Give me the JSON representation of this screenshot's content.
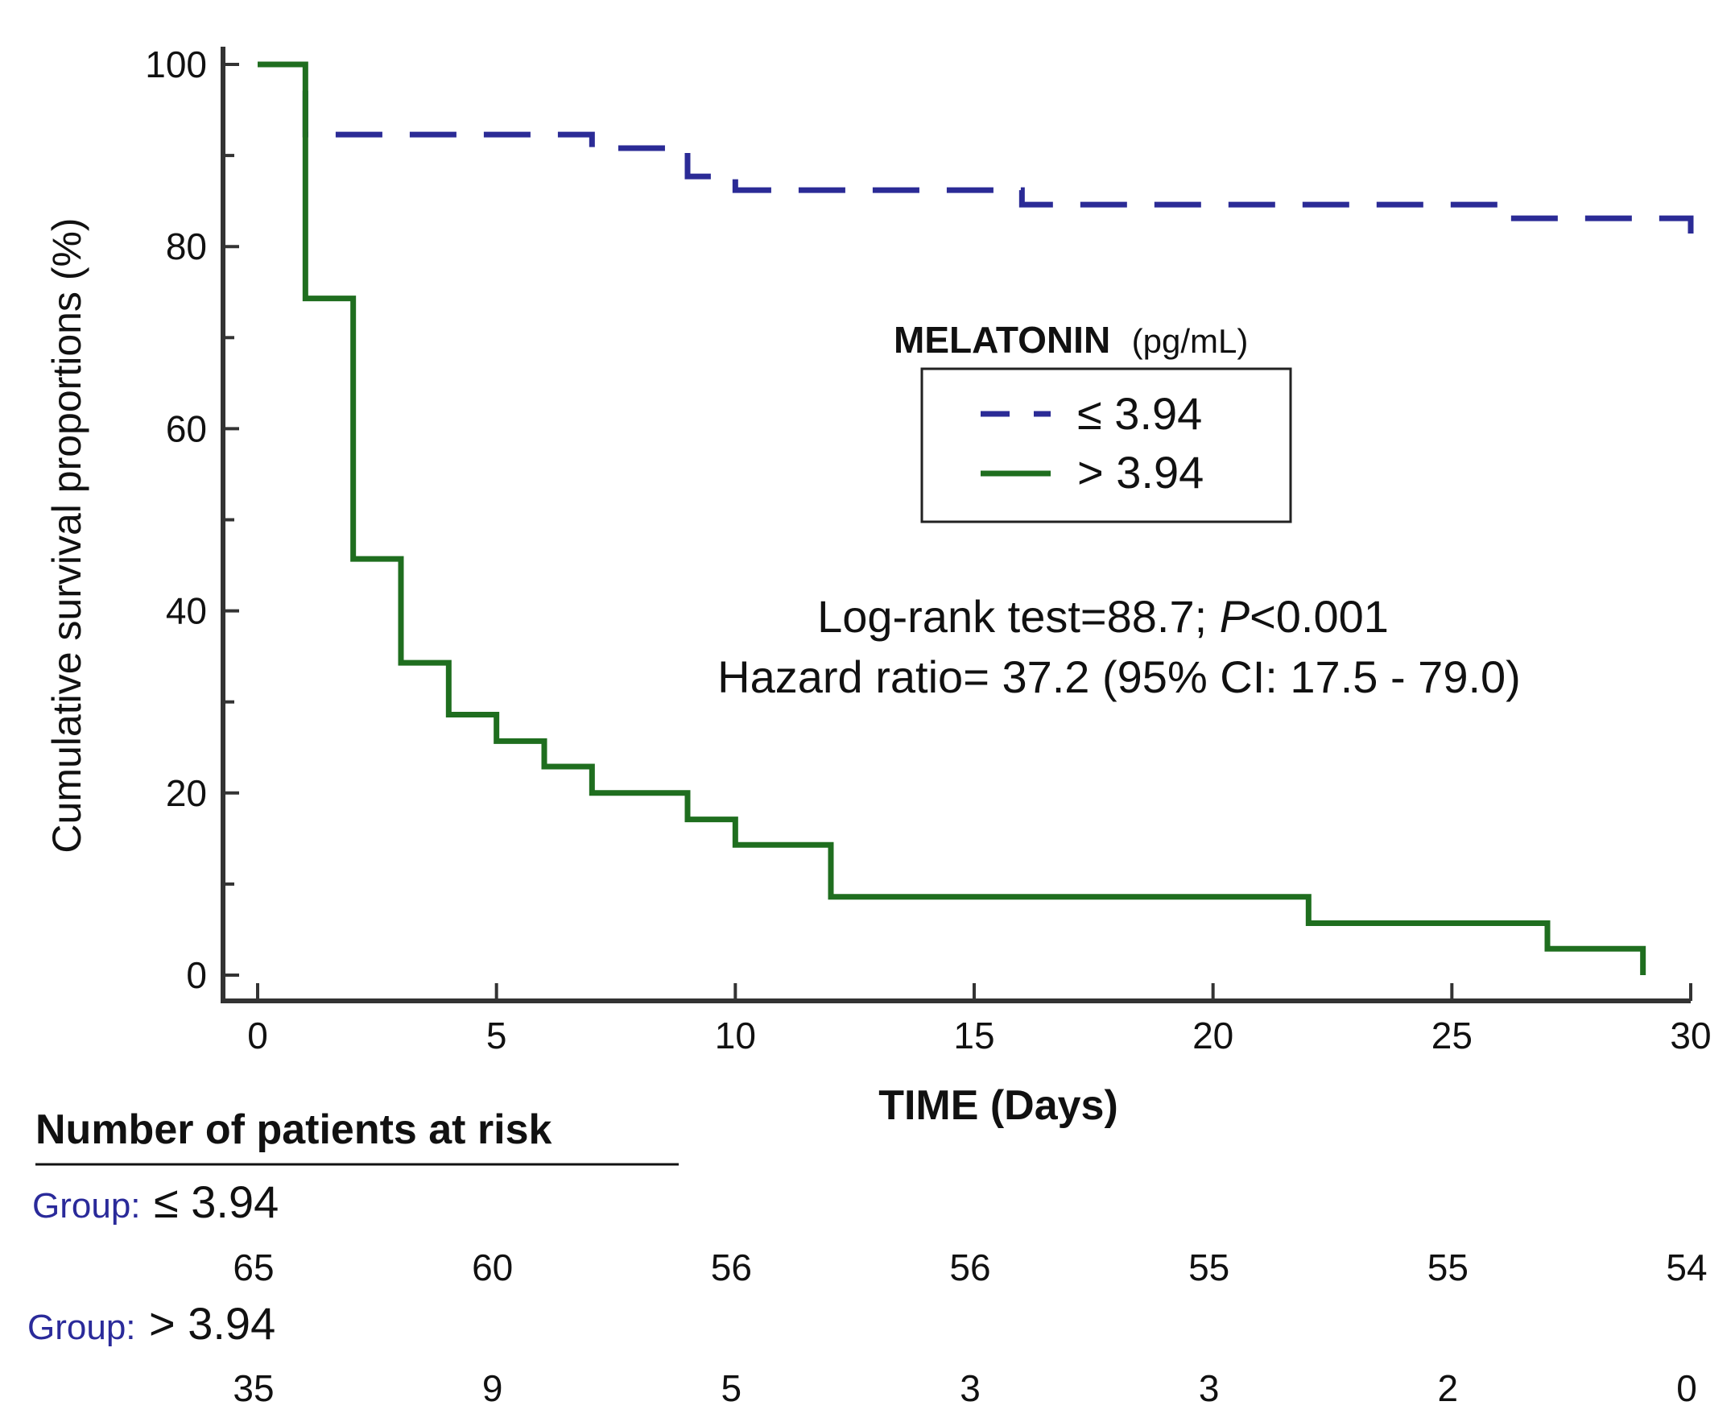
{
  "colors": {
    "group_low": "#2b2b96",
    "group_high": "#1f6e1f",
    "axis": "#333333",
    "group_prefix": "#2a2a9a"
  },
  "chart_data": {
    "type": "line",
    "subtype": "kaplan-meier",
    "xlabel": "TIME (Days)",
    "ylabel": "Cumulative survival proportions (%)",
    "xlim": [
      0,
      30
    ],
    "ylim": [
      0,
      100
    ],
    "x_ticks": [
      0,
      5,
      10,
      15,
      20,
      25,
      30
    ],
    "y_ticks": [
      0,
      20,
      40,
      60,
      80,
      100
    ],
    "y_minor_ticks": [
      10,
      30,
      50,
      70,
      90
    ],
    "grid": false,
    "legend": {
      "title": "MELATONIN",
      "unit": "(pg/mL)",
      "placement": "upper-right"
    },
    "series": [
      {
        "name": "≤ 3.94",
        "style": "dashed",
        "color": "#2b2b96",
        "steps": [
          [
            0,
            100
          ],
          [
            1,
            92.3
          ],
          [
            7,
            90.8
          ],
          [
            9,
            87.7
          ],
          [
            10,
            86.2
          ],
          [
            16,
            84.6
          ],
          [
            26,
            83.1
          ],
          [
            30,
            81.0
          ]
        ]
      },
      {
        "name": "> 3.94",
        "style": "solid",
        "color": "#1f6e1f",
        "steps": [
          [
            0,
            100
          ],
          [
            1,
            74.3
          ],
          [
            2,
            45.7
          ],
          [
            3,
            34.3
          ],
          [
            4,
            28.6
          ],
          [
            5,
            25.7
          ],
          [
            6,
            22.9
          ],
          [
            7,
            20.0
          ],
          [
            9,
            17.1
          ],
          [
            10,
            14.3
          ],
          [
            12,
            8.6
          ],
          [
            22,
            5.7
          ],
          [
            27,
            2.9
          ],
          [
            29,
            0
          ]
        ]
      }
    ],
    "annotations": {
      "line1_prefix": "Log-rank test=88.7; ",
      "line1_italic": "P",
      "line1_suffix": "<0.001",
      "line2": "Hazard ratio= 37.2 (95% CI: 17.5 - 79.0)"
    },
    "risk_table": {
      "title": "Number of patients at risk",
      "times": [
        0,
        5,
        10,
        15,
        20,
        25,
        30
      ],
      "groups": [
        {
          "prefix": "Group:",
          "label": "≤ 3.94",
          "counts": [
            "65",
            "60",
            "56",
            "56",
            "55",
            "55",
            "54"
          ]
        },
        {
          "prefix": "Group:",
          "label": "> 3.94",
          "counts": [
            "35",
            "9",
            "5",
            "3",
            "3",
            "2",
            "0"
          ]
        }
      ]
    }
  }
}
